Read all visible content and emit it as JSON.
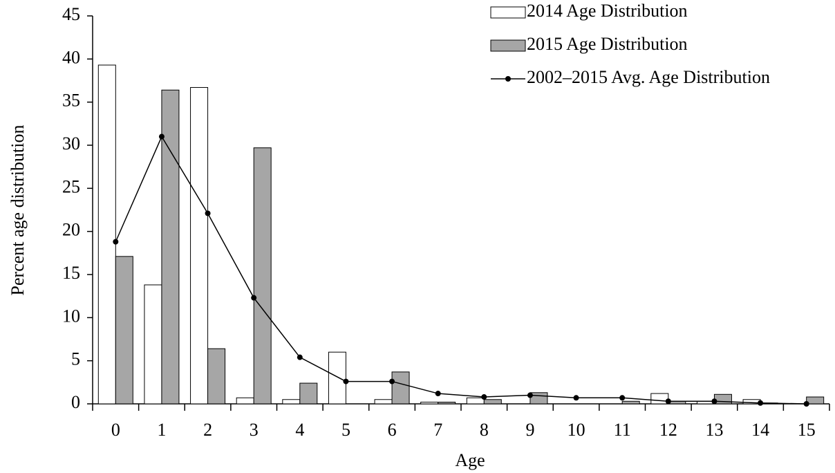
{
  "chart_data": {
    "type": "bar",
    "x_label": "Age",
    "y_label": "Percent age distribution",
    "categories": [
      "0",
      "1",
      "2",
      "3",
      "4",
      "5",
      "6",
      "7",
      "8",
      "9",
      "10",
      "11",
      "12",
      "13",
      "14",
      "15"
    ],
    "series": [
      {
        "name": "2014 Age Distribution",
        "type": "bar",
        "color": "#ffffff",
        "values": [
          39.3,
          13.8,
          36.7,
          0.7,
          0.5,
          6.0,
          0.5,
          0.2,
          0.7,
          0,
          0,
          0,
          1.2,
          0.3,
          0.5,
          0
        ]
      },
      {
        "name": "2015 Age Distribution",
        "type": "bar",
        "color": "#a6a6a6",
        "values": [
          17.1,
          36.4,
          6.4,
          29.7,
          2.4,
          0,
          3.7,
          0.2,
          0.5,
          1.3,
          0,
          0.3,
          0.3,
          1.1,
          0.1,
          0.8
        ]
      },
      {
        "name": "2002–2015 Avg. Age Distribution",
        "type": "line",
        "color": "#000000",
        "values": [
          18.8,
          31.0,
          22.1,
          12.3,
          5.4,
          2.6,
          2.6,
          1.2,
          0.8,
          1.0,
          0.7,
          0.7,
          0.3,
          0.3,
          0.1,
          0.0
        ]
      }
    ],
    "ylim": [
      0,
      45
    ],
    "yticks": [
      0,
      5,
      10,
      15,
      20,
      25,
      30,
      35,
      40,
      45
    ],
    "legend": "top-right"
  }
}
